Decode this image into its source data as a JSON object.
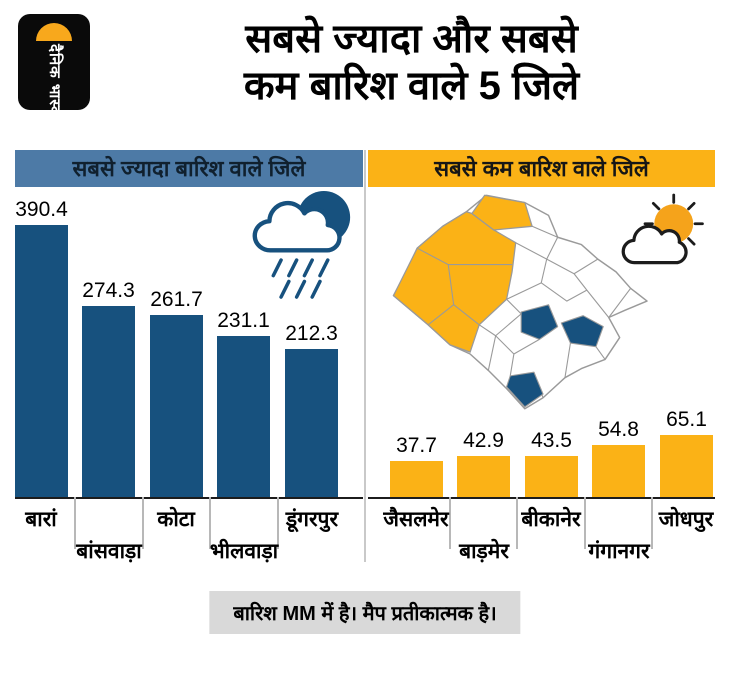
{
  "logo": {
    "text": "दैनिक भास्कर"
  },
  "title": {
    "line1": "सबसे ज्यादा और सबसे",
    "line2": "कम बारिश वाले 5 जिले"
  },
  "headers": {
    "most": "सबसे ज्यादा बारिश वाले जिले",
    "least": "सबसे कम बारिश वाले जिले"
  },
  "chart_data": [
    {
      "type": "bar",
      "title": "सबसे ज्यादा बारिश वाले जिले",
      "categories": [
        "बारां",
        "बांसवाड़ा",
        "कोटा",
        "भीलवाड़ा",
        "डूंगरपुर"
      ],
      "values": [
        390.4,
        274.3,
        261.7,
        231.1,
        212.3
      ],
      "bar_color": "#17517e",
      "unit": "MM",
      "value_labels": "above bars",
      "legend": "none",
      "grid": "off"
    },
    {
      "type": "bar",
      "title": "सबसे कम बारिश वाले जिले",
      "categories": [
        "जैसलमेर",
        "बाड़मेर",
        "बीकानेर",
        "गंगानगर",
        "जोधपुर"
      ],
      "values": [
        37.7,
        42.9,
        43.5,
        54.8,
        65.1
      ],
      "bar_color": "#fbb216",
      "unit": "MM",
      "value_labels": "above bars",
      "legend": "none",
      "grid": "off"
    }
  ],
  "footer": {
    "note": "बारिश MM में है। मैप प्रतीकात्मक है।"
  },
  "colors": {
    "navy": "#17517e",
    "yellow": "#fbb216",
    "header_blue": "#4d7aa6",
    "sun": "#f5a31b",
    "logo_orange": "#f8a81c",
    "gray_note": "#d9d9d9",
    "map_stroke": "#9a9a9a"
  }
}
